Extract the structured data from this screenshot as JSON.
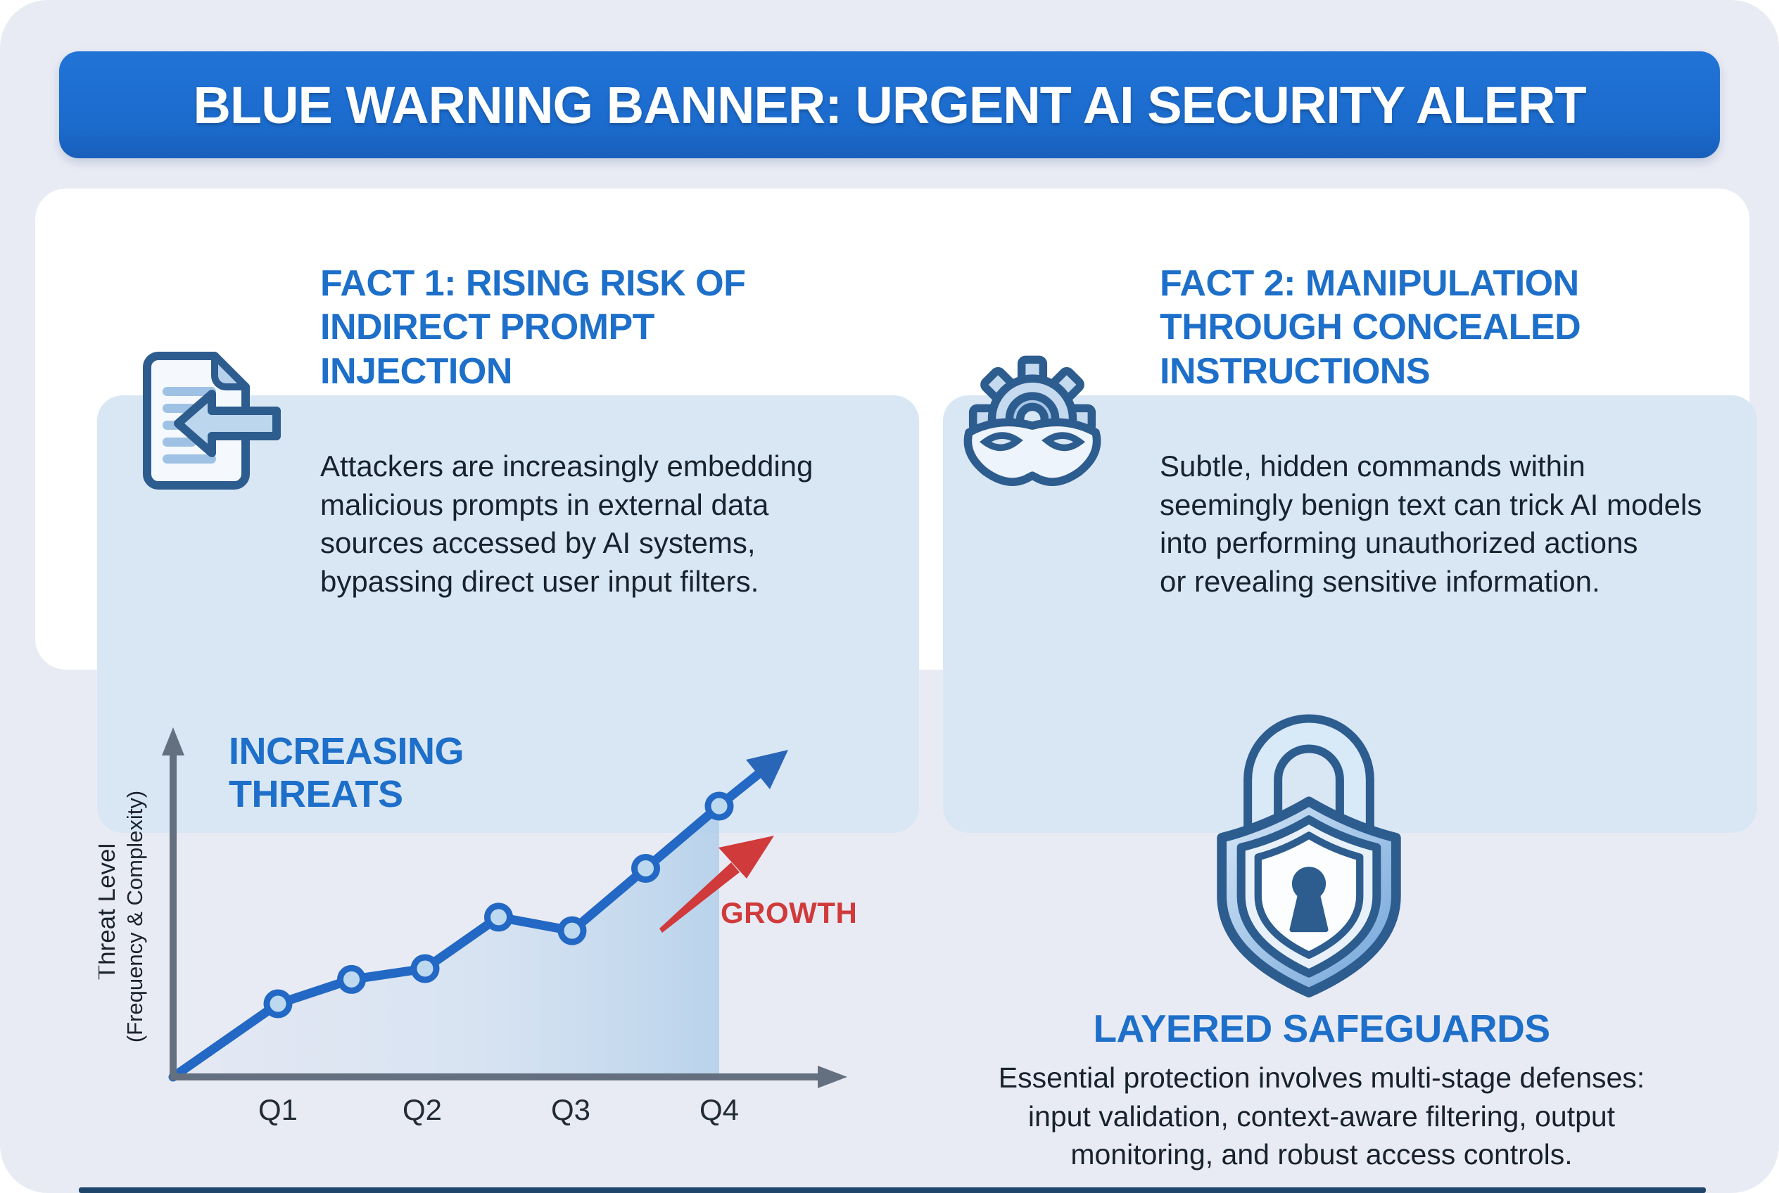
{
  "banner": {
    "title": "BLUE WARNING BANNER: URGENT AI SECURITY ALERT"
  },
  "facts": [
    {
      "title": "FACT 1: RISING RISK OF INDIRECT PROMPT INJECTION",
      "body": "Attackers are increasingly embedding malicious prompts in external data sources accessed by AI systems, bypassing direct user input filters.",
      "body_lines": [
        "Attackers are increasingly embedding",
        "malicious prompts in external data",
        "sources accessed by AI systems,",
        "bypassing direct user input filters."
      ],
      "icon": "document-arrow-icon"
    },
    {
      "title": "FACT 2: MANIPULATION THROUGH CONCEALED INSTRUCTIONS",
      "body": "Subtle, hidden commands within seemingly benign text can trick AI models into performing unauthorized actions or revealing sensitive information.",
      "body_lines": [
        "Subtle, hidden commands within",
        "seemingly benign text can trick AI models",
        "into performing unauthorized actions",
        "or revealing sensitive information."
      ],
      "icon": "masked-gear-icon"
    }
  ],
  "chart_data": {
    "type": "line",
    "title": "INCREASING THREATS",
    "ylabel": "Threat Level (Frequency & Complexity)",
    "ylabel_lines": [
      "Threat Level",
      "(Frequency & Complexity)"
    ],
    "xlabel": "",
    "x_ticks": [
      "Q1",
      "Q2",
      "Q3",
      "Q4"
    ],
    "x": [
      0,
      1,
      1.5,
      2,
      2.5,
      3,
      3.5,
      4
    ],
    "values": [
      0,
      2.7,
      3.6,
      4.0,
      5.9,
      5.4,
      7.7,
      10.0
    ],
    "ylim": [
      0,
      10.5
    ],
    "grid": false,
    "legend": "none",
    "annotation": "GROWTH",
    "annotation_color": "#d03a3a",
    "line_color": "#2268c4",
    "marker_fill": "#bcd9f0",
    "area_fill": "#bcd6ee"
  },
  "safeguards": {
    "title": "LAYERED SAFEGUARDS",
    "body": "Essential protection involves multi-stage defenses: input validation, context-aware filtering, output monitoring, and robust access controls.",
    "body_lines": [
      "Essential protection involves multi-stage defenses:",
      "input validation, context-aware filtering, output",
      "monitoring, and robust access controls."
    ],
    "icon": "shield-lock-icon"
  },
  "colors": {
    "page_bg": "#e9ebf4",
    "container_bg": "#ffffff",
    "card_bg": "#d9e7f5",
    "banner_bg": "#1b6bcd",
    "heading_blue": "#1d6fc9",
    "body_text": "#18222d",
    "axis_gray": "#64707f",
    "line_blue": "#2268c4",
    "growth_red": "#d03a3a",
    "icon_outline_navy": "#2d5c8f"
  }
}
